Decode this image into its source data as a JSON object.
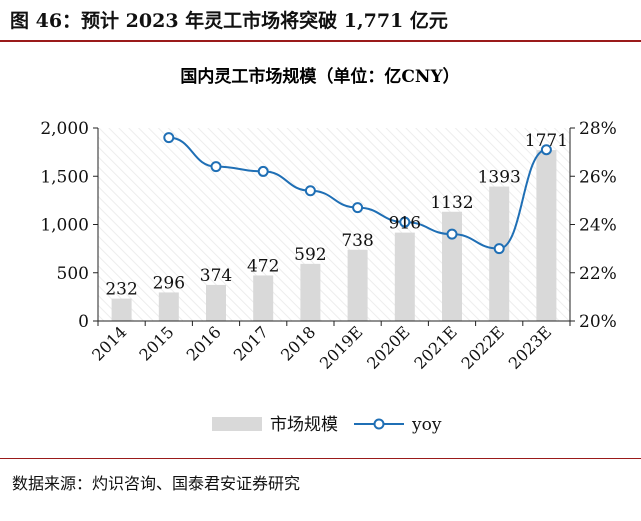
{
  "figure_title": "图 46：预计 2023 年灵工市场将突破 1,771 亿元",
  "source": "数据来源：灼识咨询、国泰君安证券研究",
  "colors": {
    "bar": "#d9d9d9",
    "line": "#1f6fb5",
    "rule": "#9a1a1a",
    "text": "#111111"
  },
  "chart_data": {
    "type": "bar",
    "title": "国内灵工市场规模（单位：亿CNY）",
    "categories": [
      "2014",
      "2015",
      "2016",
      "2017",
      "2018",
      "2019E",
      "2020E",
      "2021E",
      "2022E",
      "2023E"
    ],
    "series": [
      {
        "name": "市场规模",
        "type": "bar",
        "axis": "left",
        "values": [
          232,
          296,
          374,
          472,
          592,
          738,
          916,
          1132,
          1393,
          1771
        ]
      },
      {
        "name": "yoy",
        "type": "line",
        "axis": "right",
        "values": [
          null,
          27.6,
          26.4,
          26.2,
          25.4,
          24.7,
          24.1,
          23.6,
          23.0,
          27.1
        ]
      }
    ],
    "data_labels": [
      "232",
      "296",
      "374",
      "472",
      "592",
      "738",
      "916",
      "1132",
      "1393",
      "1771"
    ],
    "y_left": {
      "lim": [
        0,
        2000
      ],
      "ticks": [
        0,
        500,
        1000,
        1500,
        2000
      ],
      "tick_labels": [
        "0",
        "500",
        "1,000",
        "1,500",
        "2,000"
      ]
    },
    "y_right": {
      "lim": [
        20,
        28
      ],
      "ticks": [
        20,
        22,
        24,
        26,
        28
      ],
      "tick_labels": [
        "20%",
        "22%",
        "24%",
        "26%",
        "28%"
      ]
    },
    "legend": {
      "position": "bottom",
      "labels": [
        "市场规模",
        "yoy"
      ]
    },
    "grid": false,
    "background": "diagonal-hatch"
  }
}
